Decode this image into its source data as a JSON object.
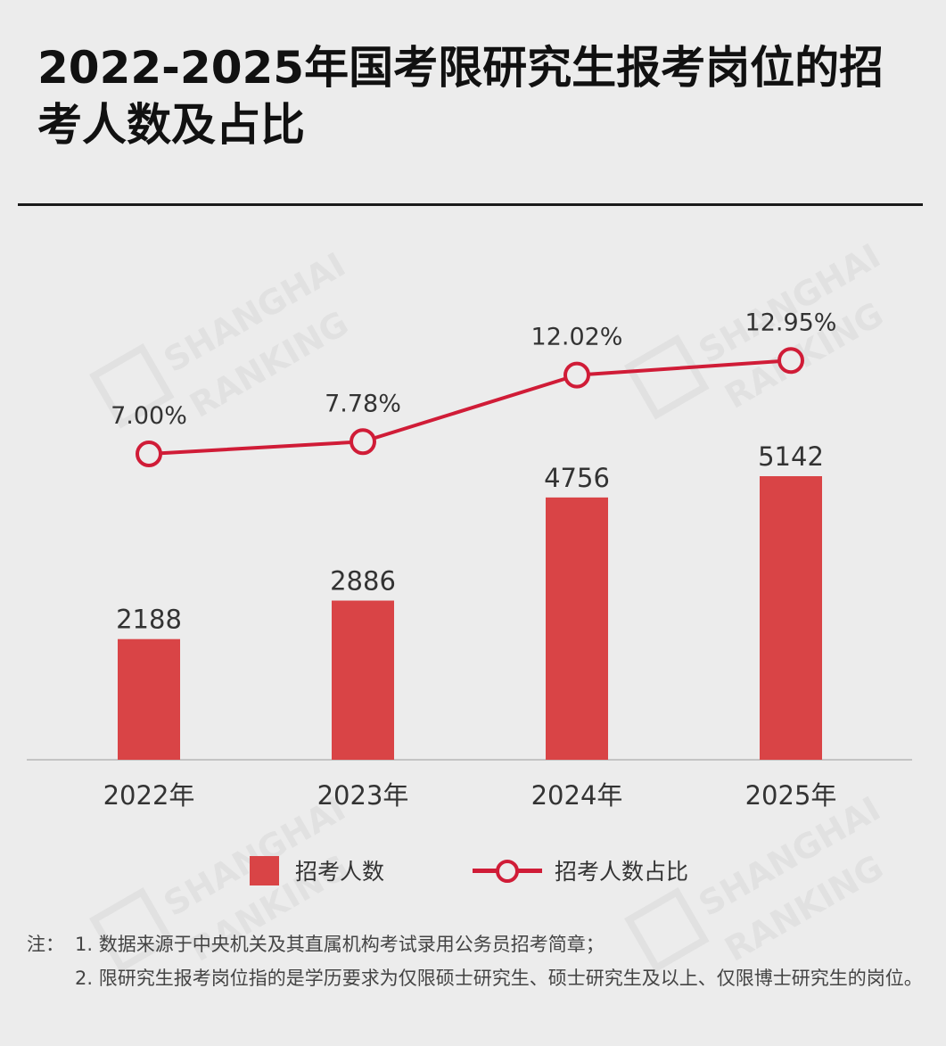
{
  "title": "2022-2025年国考限研究生报考岗位的招考人数及占比",
  "watermark": [
    "SHANGHAI",
    "RANKING"
  ],
  "chart_data": {
    "type": "bar",
    "categories": [
      "2022年",
      "2023年",
      "2024年",
      "2025年"
    ],
    "series": [
      {
        "name": "招考人数",
        "type": "bar",
        "values": [
          2188,
          2886,
          4756,
          5142
        ],
        "labels": [
          "2188",
          "2886",
          "4756",
          "5142"
        ],
        "color": "#d94446"
      },
      {
        "name": "招考人数占比",
        "type": "line",
        "values": [
          7.0,
          7.78,
          12.02,
          12.95
        ],
        "labels": [
          "7.00%",
          "7.78%",
          "12.02%",
          "12.95%"
        ],
        "color": "#d01c37"
      }
    ],
    "grid": false,
    "legend_position": "bottom"
  },
  "legend": {
    "bar_label": "招考人数",
    "line_label": "招考人数占比"
  },
  "notes": {
    "prefix": "注：",
    "items": [
      "1. 数据来源于中央机关及其直属机构考试录用公务员招考简章；",
      "2. 限研究生报考岗位指的是学历要求为仅限硕士研究生、硕士研究生及以上、仅限博士研究生的岗位。"
    ]
  }
}
